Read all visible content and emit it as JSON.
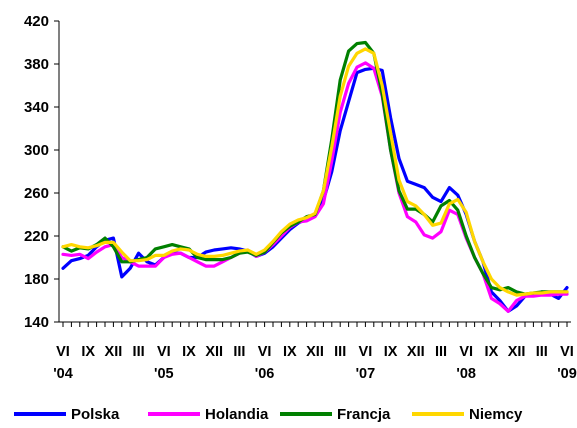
{
  "chart_data": {
    "type": "line",
    "ylim": [
      140,
      420
    ],
    "yticks": [
      140,
      180,
      220,
      260,
      300,
      340,
      380,
      420
    ],
    "grid": false,
    "legend_position": "bottom",
    "months": [
      "2004-06",
      "2004-07",
      "2004-08",
      "2004-09",
      "2004-10",
      "2004-11",
      "2004-12",
      "2005-01",
      "2005-02",
      "2005-03",
      "2005-04",
      "2005-05",
      "2005-06",
      "2005-07",
      "2005-08",
      "2005-09",
      "2005-10",
      "2005-11",
      "2005-12",
      "2006-01",
      "2006-02",
      "2006-03",
      "2006-04",
      "2006-05",
      "2006-06",
      "2006-07",
      "2006-08",
      "2006-09",
      "2006-10",
      "2006-11",
      "2006-12",
      "2007-01",
      "2007-02",
      "2007-03",
      "2007-04",
      "2007-05",
      "2007-06",
      "2007-07",
      "2007-08",
      "2007-09",
      "2007-10",
      "2007-11",
      "2007-12",
      "2008-01",
      "2008-02",
      "2008-03",
      "2008-04",
      "2008-05",
      "2008-06",
      "2008-07",
      "2008-08",
      "2008-09",
      "2008-10",
      "2008-11",
      "2008-12",
      "2009-01",
      "2009-02",
      "2009-03",
      "2009-04",
      "2009-05",
      "2009-06"
    ],
    "x_tick_labels": [
      {
        "label": "VI",
        "month": "2004-06"
      },
      {
        "label": "IX",
        "month": "2004-09"
      },
      {
        "label": "XII",
        "month": "2004-12"
      },
      {
        "label": "III",
        "month": "2005-03"
      },
      {
        "label": "VI",
        "month": "2005-06"
      },
      {
        "label": "IX",
        "month": "2005-09"
      },
      {
        "label": "XII",
        "month": "2005-12"
      },
      {
        "label": "III",
        "month": "2006-03"
      },
      {
        "label": "VI",
        "month": "2006-06"
      },
      {
        "label": "IX",
        "month": "2006-09"
      },
      {
        "label": "XII",
        "month": "2006-12"
      },
      {
        "label": "III",
        "month": "2007-03"
      },
      {
        "label": "VI",
        "month": "2007-06"
      },
      {
        "label": "IX",
        "month": "2007-09"
      },
      {
        "label": "XII",
        "month": "2007-12"
      },
      {
        "label": "III",
        "month": "2008-03"
      },
      {
        "label": "VI",
        "month": "2008-06"
      },
      {
        "label": "IX",
        "month": "2008-09"
      },
      {
        "label": "XII",
        "month": "2008-12"
      },
      {
        "label": "III",
        "month": "2009-03"
      },
      {
        "label": "VI",
        "month": "2009-06"
      }
    ],
    "year_labels": [
      {
        "label": "'04",
        "month": "2004-06"
      },
      {
        "label": "'05",
        "month": "2005-06"
      },
      {
        "label": "'06",
        "month": "2006-06"
      },
      {
        "label": "'07",
        "month": "2007-06"
      },
      {
        "label": "'08",
        "month": "2008-06"
      },
      {
        "label": "'09",
        "month": "2009-06"
      }
    ],
    "series": [
      {
        "name": "Polska",
        "color": "#0000FF",
        "values": [
          190,
          197,
          199,
          202,
          210,
          216,
          218,
          182,
          190,
          204,
          196,
          193,
          200,
          204,
          204,
          200,
          200,
          205,
          207,
          208,
          209,
          208,
          206,
          201,
          204,
          210,
          218,
          226,
          232,
          236,
          240,
          253,
          280,
          318,
          345,
          372,
          375,
          376,
          374,
          330,
          292,
          271,
          268,
          265,
          256,
          252,
          265,
          258,
          240,
          215,
          196,
          168,
          160,
          150,
          155,
          164,
          165,
          168,
          166,
          162,
          172
        ]
      },
      {
        "name": "Holandia",
        "color": "#FF00FF",
        "values": [
          203,
          202,
          203,
          199,
          205,
          210,
          212,
          200,
          196,
          192,
          192,
          192,
          200,
          203,
          204,
          200,
          196,
          192,
          192,
          196,
          200,
          204,
          207,
          201,
          205,
          212,
          220,
          228,
          233,
          234,
          238,
          250,
          290,
          335,
          362,
          377,
          381,
          376,
          350,
          300,
          260,
          238,
          233,
          221,
          218,
          224,
          244,
          240,
          218,
          200,
          185,
          162,
          157,
          150,
          160,
          164,
          164,
          165,
          165,
          166,
          166
        ]
      },
      {
        "name": "Francja",
        "color": "#008000",
        "values": [
          210,
          206,
          209,
          208,
          212,
          218,
          210,
          196,
          196,
          198,
          200,
          208,
          210,
          212,
          210,
          208,
          200,
          198,
          198,
          198,
          200,
          204,
          205,
          202,
          205,
          214,
          223,
          229,
          233,
          238,
          240,
          262,
          310,
          365,
          392,
          399,
          400,
          390,
          352,
          300,
          262,
          245,
          245,
          240,
          233,
          248,
          253,
          244,
          220,
          200,
          185,
          172,
          170,
          172,
          168,
          166,
          167,
          168,
          168,
          168,
          168
        ]
      },
      {
        "name": "Niemcy",
        "color": "#FFD700",
        "values": [
          210,
          212,
          210,
          209,
          211,
          214,
          214,
          205,
          197,
          197,
          198,
          202,
          202,
          206,
          208,
          207,
          203,
          201,
          201,
          202,
          204,
          206,
          207,
          203,
          207,
          215,
          224,
          231,
          235,
          237,
          241,
          262,
          303,
          350,
          378,
          390,
          394,
          390,
          360,
          316,
          272,
          252,
          248,
          240,
          230,
          232,
          250,
          254,
          242,
          215,
          196,
          180,
          172,
          168,
          165,
          166,
          167,
          167,
          168,
          168,
          168
        ]
      }
    ]
  }
}
